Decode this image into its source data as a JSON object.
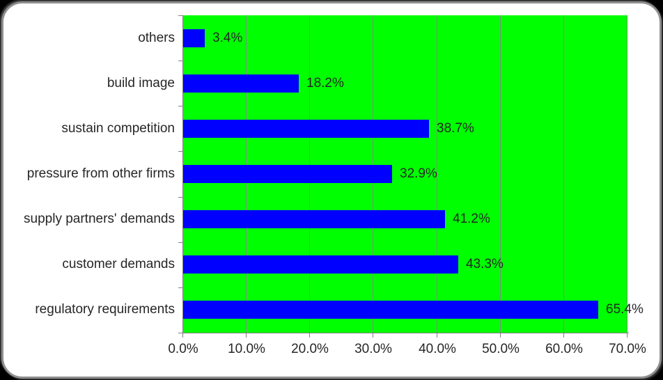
{
  "chart_data": {
    "type": "bar",
    "orientation": "horizontal",
    "title": "",
    "xlabel": "",
    "ylabel": "",
    "categories": [
      "others",
      "build image",
      "sustain competition",
      "pressure from other firms",
      "supply partners' demands",
      "customer demands",
      "regulatory requirements"
    ],
    "values": [
      3.4,
      18.2,
      38.7,
      32.9,
      41.2,
      43.3,
      65.4
    ],
    "value_labels": [
      "3.4%",
      "18.2%",
      "38.7%",
      "32.9%",
      "41.2%",
      "43.3%",
      "65.4%"
    ],
    "x_tick_labels": [
      "0.0%",
      "10.0%",
      "20.0%",
      "30.0%",
      "40.0%",
      "50.0%",
      "60.0%",
      "70.0%"
    ],
    "x_tick_values": [
      0,
      10,
      20,
      30,
      40,
      50,
      60,
      70
    ],
    "xlim": [
      0,
      70
    ],
    "grid": true,
    "legend": false,
    "colors": {
      "bar": "#0000ff",
      "plot_background": "#00ff00",
      "gridline": "#878787",
      "axis": "#808080",
      "text": "#262626",
      "frame_background": "#ffffff",
      "page_background": "#000000"
    }
  }
}
